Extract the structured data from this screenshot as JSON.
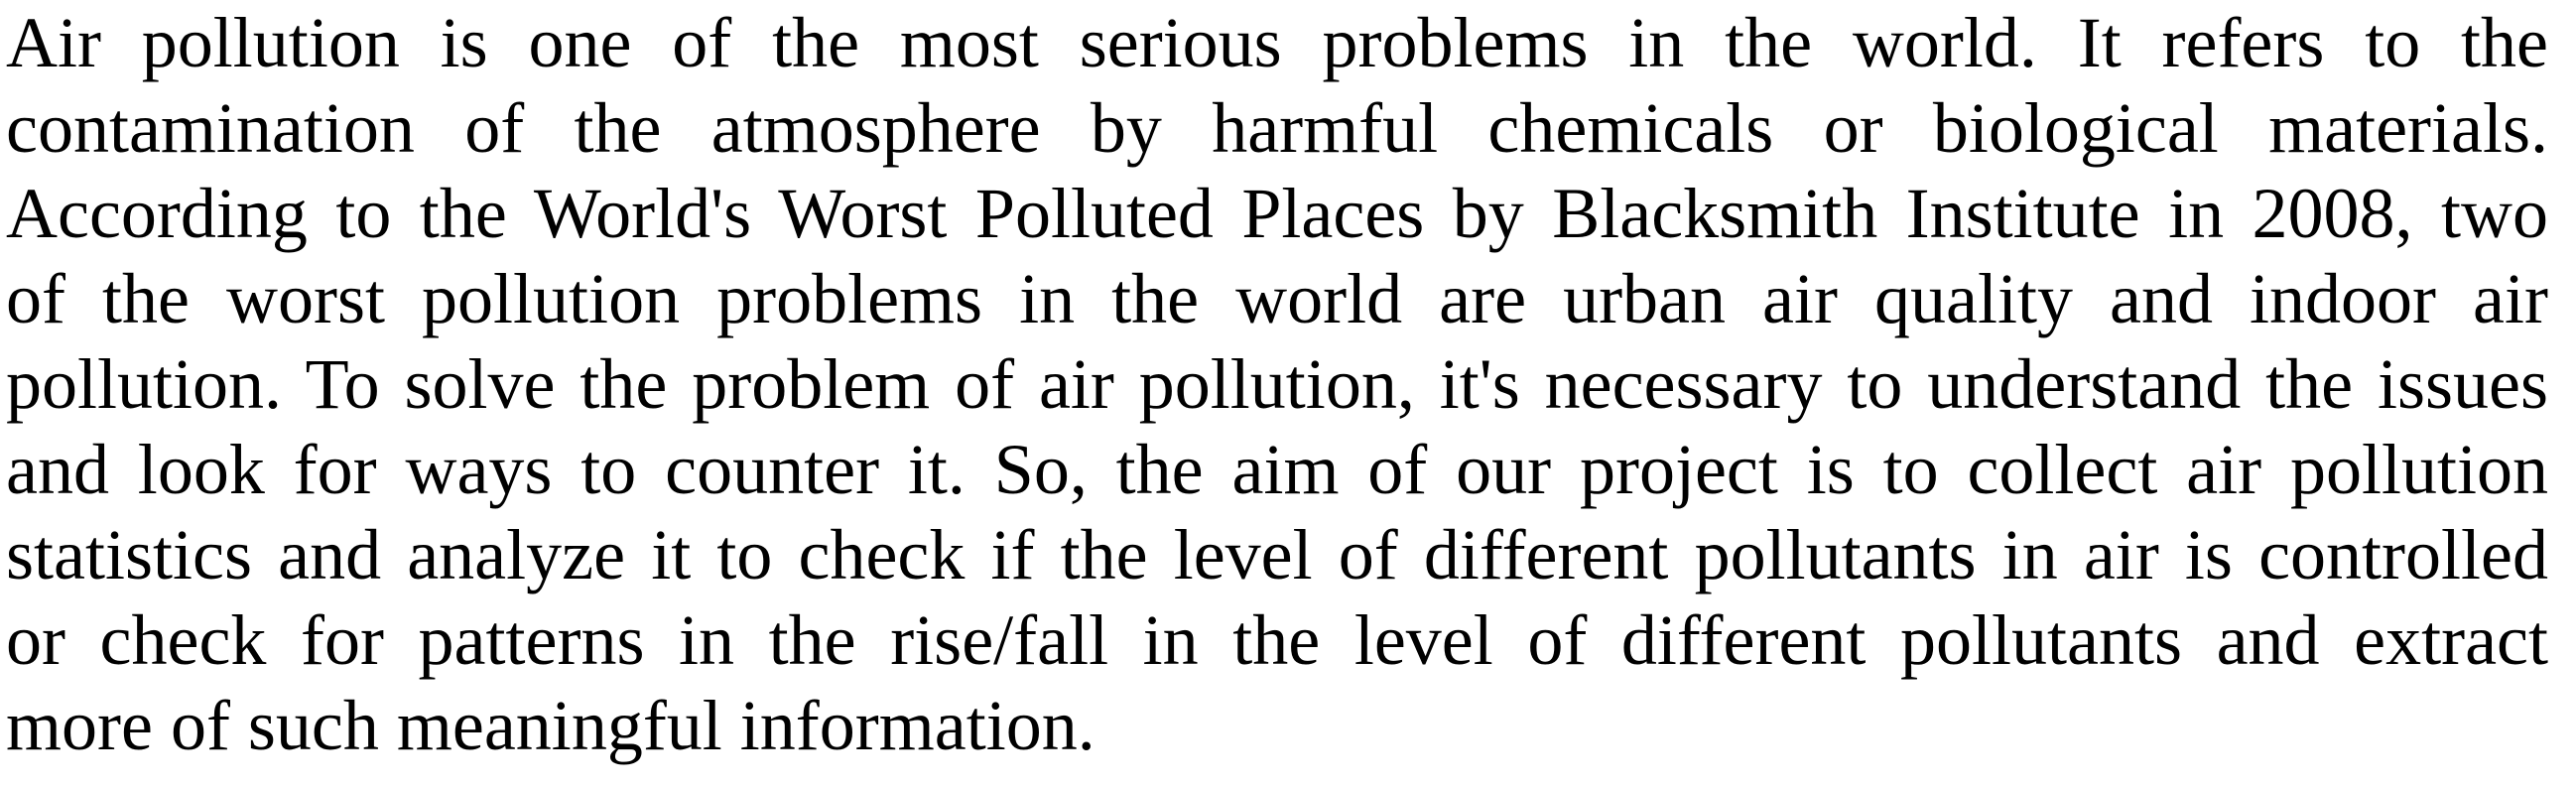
{
  "document": {
    "paragraph_lines": [
      "Air pollution is one of the most serious problems in the world. It refers to the",
      "contamination of the atmosphere by harmful chemicals or biological materials.",
      "According to the World's Worst Polluted Places by Blacksmith Institute in 2008, two",
      "of the worst pollution problems in the world are urban air quality and indoor air",
      "pollution. To solve the problem of air pollution, it's necessary to understand the issues",
      "and look for ways to counter it. So, the aim of our project is to collect air pollution",
      "statistics and analyze it to check if the level of different pollutants in air is controlled",
      "or check for patterns in the rise/fall in the level of different pollutants and extract",
      "more of such meaningful information."
    ]
  }
}
